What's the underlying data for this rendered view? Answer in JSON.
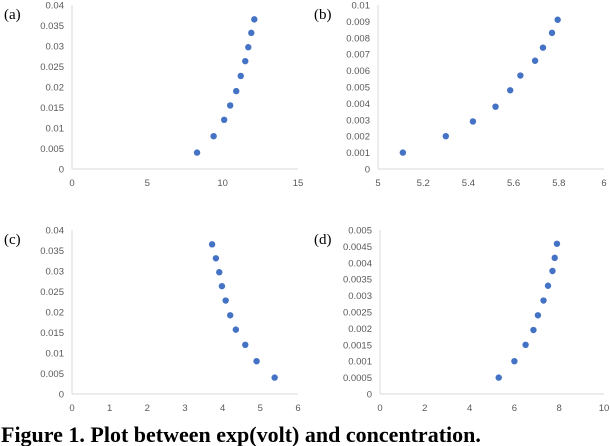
{
  "caption": "Figure 1. Plot between exp(volt) and concentration.",
  "colors": {
    "marker": "#4472c4",
    "axis": "#d9d9d9",
    "tick_text": "#595959"
  },
  "chart_data": [
    {
      "type": "scatter",
      "panel_label": "(a)",
      "xlim": [
        0,
        15
      ],
      "ylim": [
        0,
        0.04
      ],
      "x_ticks": [
        "0",
        "5",
        "10",
        "15"
      ],
      "y_ticks": [
        "0",
        "0.005",
        "0.01",
        "0.015",
        "0.02",
        "0.025",
        "0.03",
        "0.035",
        "0.04"
      ],
      "grid": false,
      "points": [
        {
          "x": 8.3,
          "y": 0.004
        },
        {
          "x": 9.4,
          "y": 0.008
        },
        {
          "x": 10.1,
          "y": 0.012
        },
        {
          "x": 10.5,
          "y": 0.0155
        },
        {
          "x": 10.9,
          "y": 0.019
        },
        {
          "x": 11.2,
          "y": 0.0227
        },
        {
          "x": 11.5,
          "y": 0.0263
        },
        {
          "x": 11.7,
          "y": 0.0297
        },
        {
          "x": 11.9,
          "y": 0.0332
        },
        {
          "x": 12.1,
          "y": 0.0365
        }
      ]
    },
    {
      "type": "scatter",
      "panel_label": "(b)",
      "xlim": [
        5,
        6
      ],
      "ylim": [
        0,
        0.01
      ],
      "x_ticks": [
        "5",
        "5.2",
        "5.4",
        "5.6",
        "5.8",
        "6"
      ],
      "y_ticks": [
        "0",
        "0.001",
        "0.002",
        "0.003",
        "0.004",
        "0.005",
        "0.006",
        "0.007",
        "0.008",
        "0.009",
        "0.01"
      ],
      "grid": false,
      "points": [
        {
          "x": 5.11,
          "y": 0.001
        },
        {
          "x": 5.3,
          "y": 0.002
        },
        {
          "x": 5.42,
          "y": 0.0029
        },
        {
          "x": 5.52,
          "y": 0.0038
        },
        {
          "x": 5.585,
          "y": 0.0048
        },
        {
          "x": 5.63,
          "y": 0.0057
        },
        {
          "x": 5.695,
          "y": 0.0066
        },
        {
          "x": 5.73,
          "y": 0.0074
        },
        {
          "x": 5.77,
          "y": 0.0083
        },
        {
          "x": 5.795,
          "y": 0.0091
        }
      ]
    },
    {
      "type": "scatter",
      "panel_label": "(c)",
      "xlim": [
        0,
        6
      ],
      "ylim": [
        0,
        0.04
      ],
      "x_ticks": [
        "0",
        "1",
        "2",
        "3",
        "4",
        "5",
        "6"
      ],
      "y_ticks": [
        "0",
        "0.005",
        "0.01",
        "0.015",
        "0.02",
        "0.025",
        "0.03",
        "0.035",
        "0.04"
      ],
      "grid": false,
      "points": [
        {
          "x": 5.38,
          "y": 0.004
        },
        {
          "x": 4.9,
          "y": 0.008
        },
        {
          "x": 4.6,
          "y": 0.012
        },
        {
          "x": 4.35,
          "y": 0.0157
        },
        {
          "x": 4.2,
          "y": 0.0192
        },
        {
          "x": 4.08,
          "y": 0.0228
        },
        {
          "x": 3.98,
          "y": 0.0263
        },
        {
          "x": 3.91,
          "y": 0.0297
        },
        {
          "x": 3.82,
          "y": 0.0331
        },
        {
          "x": 3.72,
          "y": 0.0365
        }
      ]
    },
    {
      "type": "scatter",
      "panel_label": "(d)",
      "xlim": [
        0,
        10
      ],
      "ylim": [
        0,
        0.005
      ],
      "x_ticks": [
        "0",
        "2",
        "4",
        "6",
        "8",
        "10"
      ],
      "y_ticks": [
        "0",
        "0.0005",
        "0.001",
        "0.0015",
        "0.002",
        "0.0025",
        "0.003",
        "0.0035",
        "0.004",
        "0.0045",
        "0.005"
      ],
      "grid": false,
      "points": [
        {
          "x": 5.3,
          "y": 0.0005
        },
        {
          "x": 6.0,
          "y": 0.001
        },
        {
          "x": 6.5,
          "y": 0.0015
        },
        {
          "x": 6.85,
          "y": 0.00195
        },
        {
          "x": 7.05,
          "y": 0.0024
        },
        {
          "x": 7.3,
          "y": 0.00285
        },
        {
          "x": 7.5,
          "y": 0.0033
        },
        {
          "x": 7.7,
          "y": 0.00375
        },
        {
          "x": 7.8,
          "y": 0.00415
        },
        {
          "x": 7.9,
          "y": 0.00458
        }
      ]
    }
  ]
}
